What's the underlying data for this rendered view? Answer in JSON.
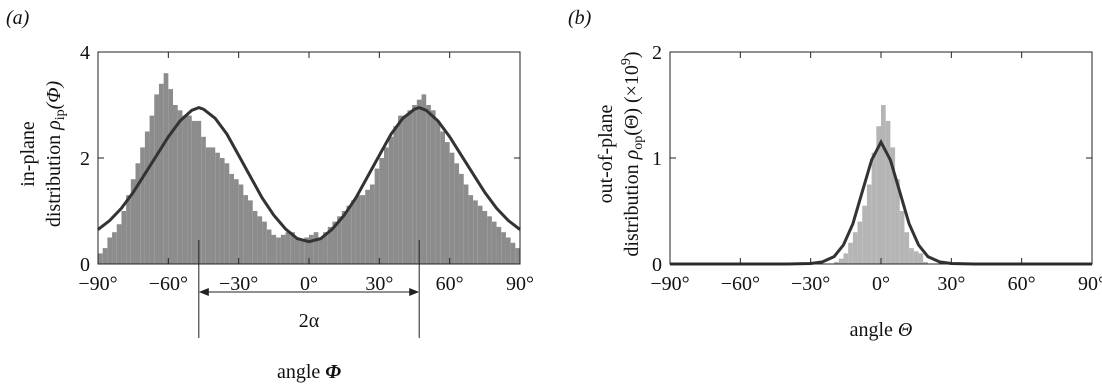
{
  "chart_data": [
    {
      "type": "bar",
      "panel_label": "(a)",
      "ylabel_line1": "in-plane",
      "ylabel_line2": "distribution ρ_ip(Φ)",
      "ylabel_line2_prefix": "distribution ",
      "ylabel_rho": "ρ",
      "ylabel_sub": "ip",
      "ylabel_arg": "(Φ)",
      "xlabel_prefix": "angle ",
      "xlabel_symbol": "Φ",
      "xlim": [
        -90,
        90
      ],
      "ylim": [
        0,
        4
      ],
      "xticks": [
        "−90°",
        "−60°",
        "−30°",
        "0°",
        "30°",
        "60°",
        "90°"
      ],
      "xtick_values": [
        -90,
        -60,
        -30,
        0,
        30,
        60,
        90
      ],
      "yticks": [
        "0",
        "2",
        "4"
      ],
      "ytick_values": [
        0,
        2,
        4
      ],
      "annotation": "2α",
      "annotation_range": [
        -47,
        47
      ],
      "bar_color": "#8c8c8c",
      "curve_color": "#333333",
      "histogram": {
        "x": [
          -89,
          -87,
          -85,
          -83,
          -81,
          -79,
          -77,
          -75,
          -73,
          -71,
          -69,
          -67,
          -65,
          -63,
          -61,
          -59,
          -57,
          -55,
          -53,
          -51,
          -49,
          -47,
          -45,
          -43,
          -41,
          -39,
          -37,
          -35,
          -33,
          -31,
          -29,
          -27,
          -25,
          -23,
          -21,
          -19,
          -17,
          -15,
          -13,
          -11,
          -9,
          -7,
          -5,
          -3,
          -1,
          1,
          3,
          5,
          7,
          9,
          11,
          13,
          15,
          17,
          19,
          21,
          23,
          25,
          27,
          29,
          31,
          33,
          35,
          37,
          39,
          41,
          43,
          45,
          47,
          49,
          51,
          53,
          55,
          57,
          59,
          61,
          63,
          65,
          67,
          69,
          71,
          73,
          75,
          77,
          79,
          81,
          83,
          85,
          87,
          89
        ],
        "values": [
          0.2,
          0.3,
          0.5,
          0.6,
          0.75,
          1.0,
          1.3,
          1.6,
          1.9,
          2.2,
          2.5,
          2.8,
          3.2,
          3.4,
          3.6,
          3.3,
          3.0,
          2.9,
          2.8,
          2.8,
          2.7,
          2.7,
          2.4,
          2.2,
          2.2,
          2.1,
          2.0,
          1.9,
          1.7,
          1.6,
          1.5,
          1.3,
          1.2,
          1.0,
          0.9,
          0.8,
          0.65,
          0.55,
          0.5,
          0.55,
          0.6,
          0.6,
          0.5,
          0.45,
          0.5,
          0.55,
          0.6,
          0.5,
          0.6,
          0.7,
          0.8,
          0.9,
          1.0,
          1.1,
          1.2,
          1.3,
          1.3,
          1.4,
          1.5,
          1.8,
          2.0,
          2.2,
          2.4,
          2.6,
          2.8,
          2.8,
          2.9,
          3.0,
          3.1,
          3.2,
          3.0,
          2.9,
          2.7,
          2.5,
          2.3,
          2.1,
          1.9,
          1.7,
          1.5,
          1.3,
          1.2,
          1.1,
          1.0,
          0.9,
          0.8,
          0.7,
          0.6,
          0.5,
          0.4,
          0.3
        ]
      },
      "curve": {
        "x": [
          -90,
          -85,
          -80,
          -75,
          -70,
          -65,
          -60,
          -55,
          -50,
          -47,
          -45,
          -40,
          -35,
          -30,
          -25,
          -20,
          -15,
          -10,
          -5,
          0,
          5,
          10,
          15,
          20,
          25,
          30,
          35,
          40,
          45,
          47,
          50,
          55,
          60,
          65,
          70,
          75,
          80,
          85,
          90
        ],
        "y": [
          0.65,
          0.82,
          1.05,
          1.35,
          1.7,
          2.05,
          2.4,
          2.7,
          2.9,
          2.95,
          2.92,
          2.75,
          2.45,
          2.05,
          1.65,
          1.25,
          0.92,
          0.66,
          0.48,
          0.42,
          0.48,
          0.66,
          0.92,
          1.25,
          1.65,
          2.05,
          2.45,
          2.75,
          2.92,
          2.95,
          2.9,
          2.7,
          2.4,
          2.05,
          1.7,
          1.35,
          1.05,
          0.82,
          0.65
        ]
      }
    },
    {
      "type": "bar",
      "panel_label": "(b)",
      "ylabel_line1": "out-of-plane",
      "ylabel_line2_prefix": "distribution ",
      "ylabel_rho": "ρ",
      "ylabel_sub": "op",
      "ylabel_arg": "(Θ) (×10",
      "ylabel_exp": "9",
      "ylabel_close": ")",
      "xlabel_prefix": "angle ",
      "xlabel_symbol": "Θ",
      "xlim": [
        -90,
        90
      ],
      "ylim": [
        0,
        2
      ],
      "xticks": [
        "−90°",
        "−60°",
        "−30°",
        "0°",
        "30°",
        "60°",
        "90°"
      ],
      "xtick_values": [
        -90,
        -60,
        -30,
        0,
        30,
        60,
        90
      ],
      "yticks": [
        "0",
        "1",
        "2"
      ],
      "ytick_values": [
        0,
        1,
        2
      ],
      "bar_color": "#b5b5b5",
      "curve_color": "#333333",
      "histogram": {
        "x": [
          -19,
          -17,
          -15,
          -13,
          -11,
          -9,
          -7,
          -5,
          -3,
          -1,
          1,
          3,
          5,
          7,
          9,
          11,
          13,
          15,
          17,
          19
        ],
        "values": [
          0.02,
          0.05,
          0.1,
          0.2,
          0.3,
          0.4,
          0.55,
          0.75,
          1.05,
          1.3,
          1.5,
          1.35,
          1.1,
          0.8,
          0.5,
          0.3,
          0.15,
          0.12,
          0.1,
          0.02
        ]
      },
      "curve": {
        "x": [
          -90,
          -40,
          -30,
          -25,
          -20,
          -16,
          -12,
          -8,
          -4,
          0,
          4,
          8,
          12,
          16,
          20,
          25,
          30,
          40,
          90
        ],
        "y": [
          0,
          0,
          0.005,
          0.02,
          0.07,
          0.18,
          0.38,
          0.68,
          0.98,
          1.15,
          0.98,
          0.68,
          0.38,
          0.18,
          0.07,
          0.02,
          0.005,
          0,
          0
        ]
      }
    }
  ]
}
